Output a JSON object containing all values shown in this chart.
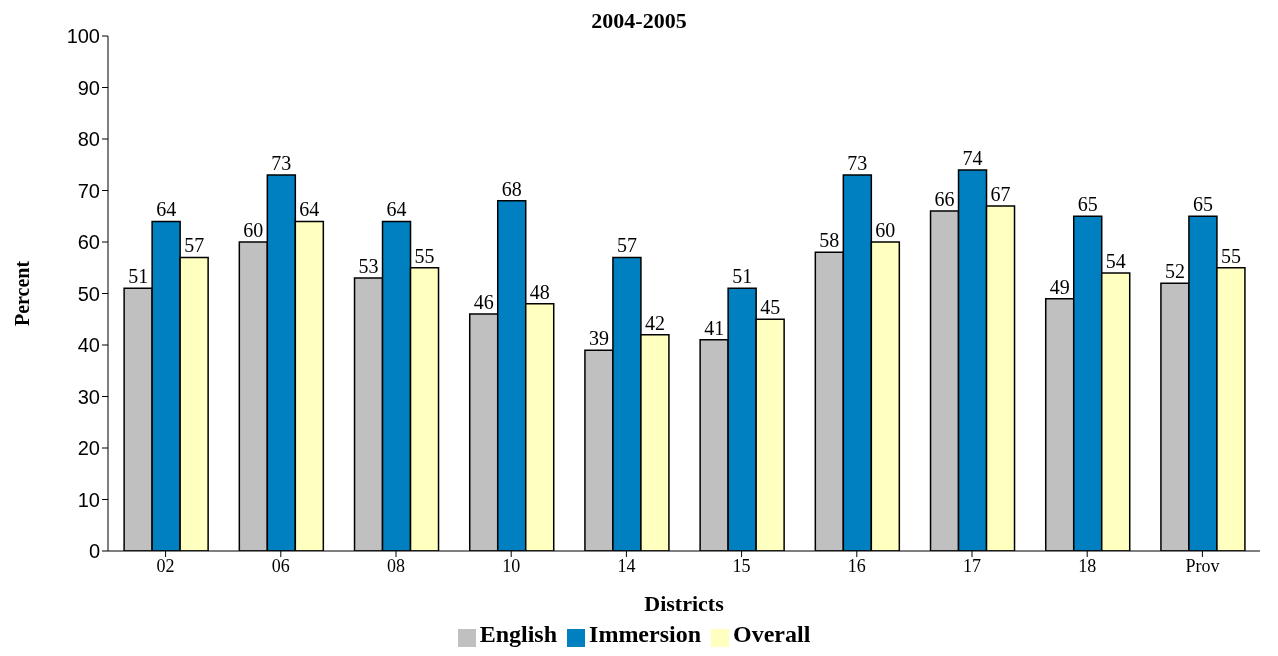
{
  "chart_data": {
    "type": "bar",
    "title": "2004-2005",
    "xlabel": "Districts",
    "ylabel": "Percent",
    "categories": [
      "02",
      "06",
      "08",
      "10",
      "14",
      "15",
      "16",
      "17",
      "18",
      "Prov"
    ],
    "series": [
      {
        "name": "English",
        "color": "#c0c0c0",
        "values": [
          51,
          60,
          53,
          46,
          39,
          41,
          58,
          66,
          49,
          52
        ]
      },
      {
        "name": "Immersion",
        "color": "#0080c0",
        "values": [
          64,
          73,
          64,
          68,
          57,
          51,
          73,
          74,
          65,
          65
        ]
      },
      {
        "name": "Overall",
        "color": "#ffffc0",
        "values": [
          57,
          64,
          55,
          48,
          42,
          45,
          60,
          67,
          54,
          55
        ]
      }
    ],
    "ylim": [
      0,
      100
    ],
    "yticks": [
      0,
      10,
      20,
      30,
      40,
      50,
      60,
      70,
      80,
      90,
      100
    ],
    "grid": false,
    "legend": "bottom",
    "data_labels": true
  }
}
